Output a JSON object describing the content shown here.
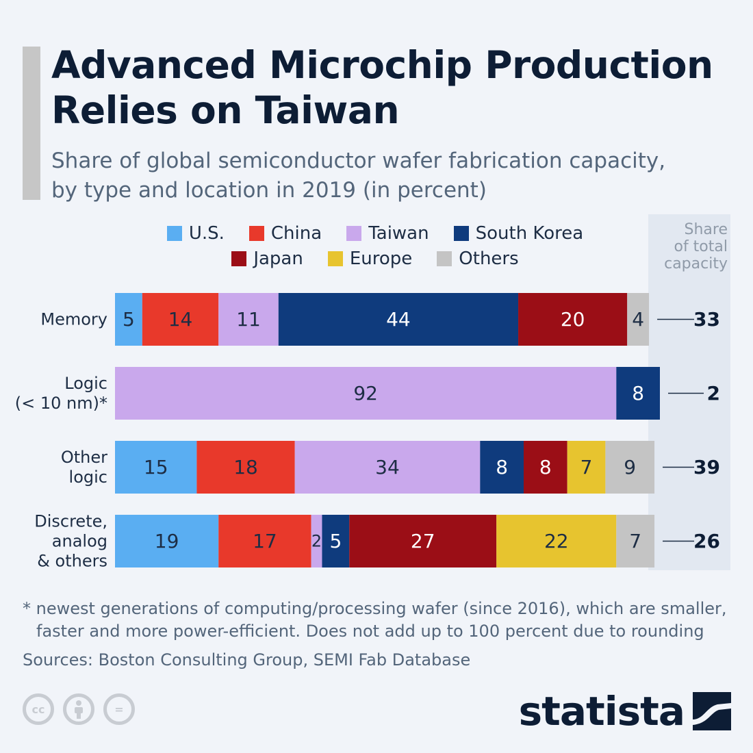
{
  "header": {
    "title_line1": "Advanced Microchip Production",
    "title_line2": "Relies on Taiwan",
    "subtitle_line1": "Share of global semiconductor wafer fabrication capacity,",
    "subtitle_line2": "by type and location in 2019 (in percent)"
  },
  "legend": {
    "row1": [
      {
        "label": "U.S.",
        "color": "#5aaef2"
      },
      {
        "label": "China",
        "color": "#e8392b"
      },
      {
        "label": "Taiwan",
        "color": "#c9a8ec"
      },
      {
        "label": "South Korea",
        "color": "#0f3b7d"
      }
    ],
    "row2": [
      {
        "label": "Japan",
        "color": "#9b0e16"
      },
      {
        "label": "Europe",
        "color": "#e7c42f"
      },
      {
        "label": "Others",
        "color": "#c4c4c4"
      }
    ]
  },
  "share_header": {
    "line1": "Share",
    "line2": "of total",
    "line3": "capacity"
  },
  "chart_data": {
    "type": "bar",
    "orientation": "horizontal",
    "stacked": true,
    "title": "Advanced Microchip Production Relies on Taiwan",
    "subtitle": "Share of global semiconductor wafer fabrication capacity, by type and location in 2019 (in percent)",
    "xlim": [
      0,
      100
    ],
    "categories": [
      {
        "lines": [
          "Memory"
        ],
        "share_of_total": 33
      },
      {
        "lines": [
          "Logic",
          "(< 10 nm)*"
        ],
        "share_of_total": 2
      },
      {
        "lines": [
          "Other",
          "logic"
        ],
        "share_of_total": 39
      },
      {
        "lines": [
          "Discrete,",
          "analog",
          "& others"
        ],
        "share_of_total": 26
      }
    ],
    "series": [
      {
        "name": "U.S.",
        "color": "#5aaef2",
        "values": [
          5,
          0,
          15,
          19
        ]
      },
      {
        "name": "China",
        "color": "#e8392b",
        "values": [
          14,
          0,
          18,
          17
        ]
      },
      {
        "name": "Taiwan",
        "color": "#c9a8ec",
        "values": [
          11,
          92,
          34,
          2
        ]
      },
      {
        "name": "South Korea",
        "color": "#0f3b7d",
        "values": [
          44,
          8,
          8,
          5
        ]
      },
      {
        "name": "Japan",
        "color": "#9b0e16",
        "values": [
          20,
          0,
          8,
          27
        ]
      },
      {
        "name": "Europe",
        "color": "#e7c42f",
        "values": [
          0,
          0,
          7,
          22
        ]
      },
      {
        "name": "Others",
        "color": "#c4c4c4",
        "values": [
          4,
          0,
          9,
          7
        ]
      }
    ],
    "share_column_label": "Share of total capacity"
  },
  "footnote": {
    "line1": "* newest generations of computing/processing wafer (since 2016), which are smaller,",
    "line2": "faster and more power-efficient. Does not add up to 100 percent due to rounding"
  },
  "sources": "Sources: Boston Consulting Group, SEMI Fab Database",
  "license_icons": [
    {
      "name": "cc-icon",
      "text": "cc"
    },
    {
      "name": "attribution-icon",
      "text": ""
    },
    {
      "name": "no-derivatives-icon",
      "text": "="
    }
  ],
  "brand": {
    "name": "statista"
  }
}
